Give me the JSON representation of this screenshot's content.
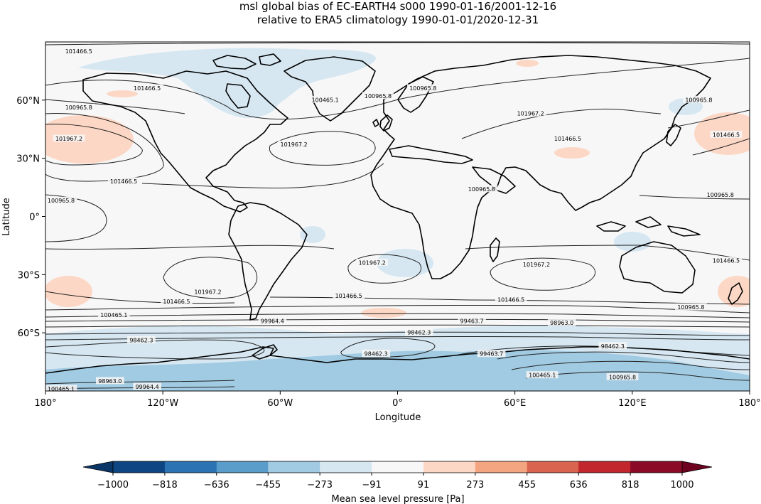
{
  "chart_data": {
    "type": "heatmap",
    "title_line1": "msl global bias of EC-EARTH4 s000 1990-01-16/2001-12-16",
    "title_line2": "relative to ERA5 climatology 1990-01-01/2020-12-31",
    "xlabel": "Longitude",
    "ylabel": "Latitude",
    "xlim": [
      -180,
      180
    ],
    "ylim": [
      -90,
      90
    ],
    "x_ticks": [
      {
        "value": -180,
        "label": "180°"
      },
      {
        "value": -120,
        "label": "120°W"
      },
      {
        "value": -60,
        "label": "60°W"
      },
      {
        "value": 0,
        "label": "0°"
      },
      {
        "value": 60,
        "label": "60°E"
      },
      {
        "value": 120,
        "label": "120°E"
      },
      {
        "value": 180,
        "label": "180°"
      }
    ],
    "y_ticks": [
      {
        "value": 60,
        "label": "60°N"
      },
      {
        "value": 30,
        "label": "30°N"
      },
      {
        "value": 0,
        "label": "0°"
      },
      {
        "value": -30,
        "label": "30°S"
      },
      {
        "value": -60,
        "label": "60°S"
      }
    ],
    "colorbar": {
      "label": "Mean sea level pressure [Pa]",
      "levels": [
        -1000,
        -818,
        -636,
        -455,
        -273,
        -91,
        91,
        273,
        455,
        636,
        818,
        1000
      ],
      "level_labels": [
        "−1000",
        "−818",
        "−636",
        "−455",
        "−273",
        "−91",
        "91",
        "273",
        "455",
        "636",
        "818",
        "1000"
      ],
      "colors": [
        "#0d4683",
        "#2b73b3",
        "#5a9dcb",
        "#a1cbe2",
        "#d6e7f2",
        "#f7f7f7",
        "#fcd7c5",
        "#f3a480",
        "#d9644f",
        "#c1272d",
        "#8b0a26"
      ],
      "extend": "both",
      "under_color": "#0a3668",
      "over_color": "#6e0320"
    },
    "contour_labels": [
      {
        "text": "101466.5",
        "lon": -163,
        "lat": 85
      },
      {
        "text": "101466.5",
        "lon": -128,
        "lat": 66
      },
      {
        "text": "100965.8",
        "lon": -163,
        "lat": 56
      },
      {
        "text": "101967.2",
        "lon": -168,
        "lat": 40
      },
      {
        "text": "101466.5",
        "lon": -140,
        "lat": 18
      },
      {
        "text": "100965.8",
        "lon": -172,
        "lat": 8
      },
      {
        "text": "100465.1",
        "lon": -37,
        "lat": 60
      },
      {
        "text": "100965.8",
        "lon": -10,
        "lat": 62
      },
      {
        "text": "100965.8",
        "lon": 13,
        "lat": 66
      },
      {
        "text": "101967.2",
        "lon": -53,
        "lat": 37
      },
      {
        "text": "101967.2",
        "lon": 68,
        "lat": 53
      },
      {
        "text": "101466.5",
        "lon": 87,
        "lat": 40
      },
      {
        "text": "100965.8",
        "lon": 154,
        "lat": 60
      },
      {
        "text": "101466.5",
        "lon": 168,
        "lat": 42
      },
      {
        "text": "100965.8",
        "lon": 165,
        "lat": 11
      },
      {
        "text": "100965.8",
        "lon": 43,
        "lat": 14
      },
      {
        "text": "101967.2",
        "lon": -13,
        "lat": -24
      },
      {
        "text": "101967.2",
        "lon": 71,
        "lat": -25
      },
      {
        "text": "101466.5",
        "lon": 168,
        "lat": -23
      },
      {
        "text": "101967.2",
        "lon": -97,
        "lat": -39
      },
      {
        "text": "101466.5",
        "lon": -113,
        "lat": -44
      },
      {
        "text": "101466.5",
        "lon": -25,
        "lat": -41
      },
      {
        "text": "101466.5",
        "lon": 58,
        "lat": -43
      },
      {
        "text": "100965.8",
        "lon": 150,
        "lat": -47
      },
      {
        "text": "100465.1",
        "lon": -145,
        "lat": -51
      },
      {
        "text": "99964.4",
        "lon": -64,
        "lat": -54
      },
      {
        "text": "99463.7",
        "lon": 38,
        "lat": -54
      },
      {
        "text": "98963.0",
        "lon": 84,
        "lat": -55
      },
      {
        "text": "98462.3",
        "lon": 11,
        "lat": -60
      },
      {
        "text": "98462.3",
        "lon": -131,
        "lat": -64
      },
      {
        "text": "98462.3",
        "lon": -11,
        "lat": -71
      },
      {
        "text": "99463.7",
        "lon": 48,
        "lat": -71
      },
      {
        "text": "98462.3",
        "lon": 110,
        "lat": -67
      },
      {
        "text": "100465.1",
        "lon": 74,
        "lat": -82
      },
      {
        "text": "100965.8",
        "lon": 115,
        "lat": -83
      },
      {
        "text": "98963.0",
        "lon": -147,
        "lat": -85
      },
      {
        "text": "99964.4",
        "lon": -128,
        "lat": -88
      },
      {
        "text": "100465.1",
        "lon": -172,
        "lat": -89
      }
    ]
  }
}
